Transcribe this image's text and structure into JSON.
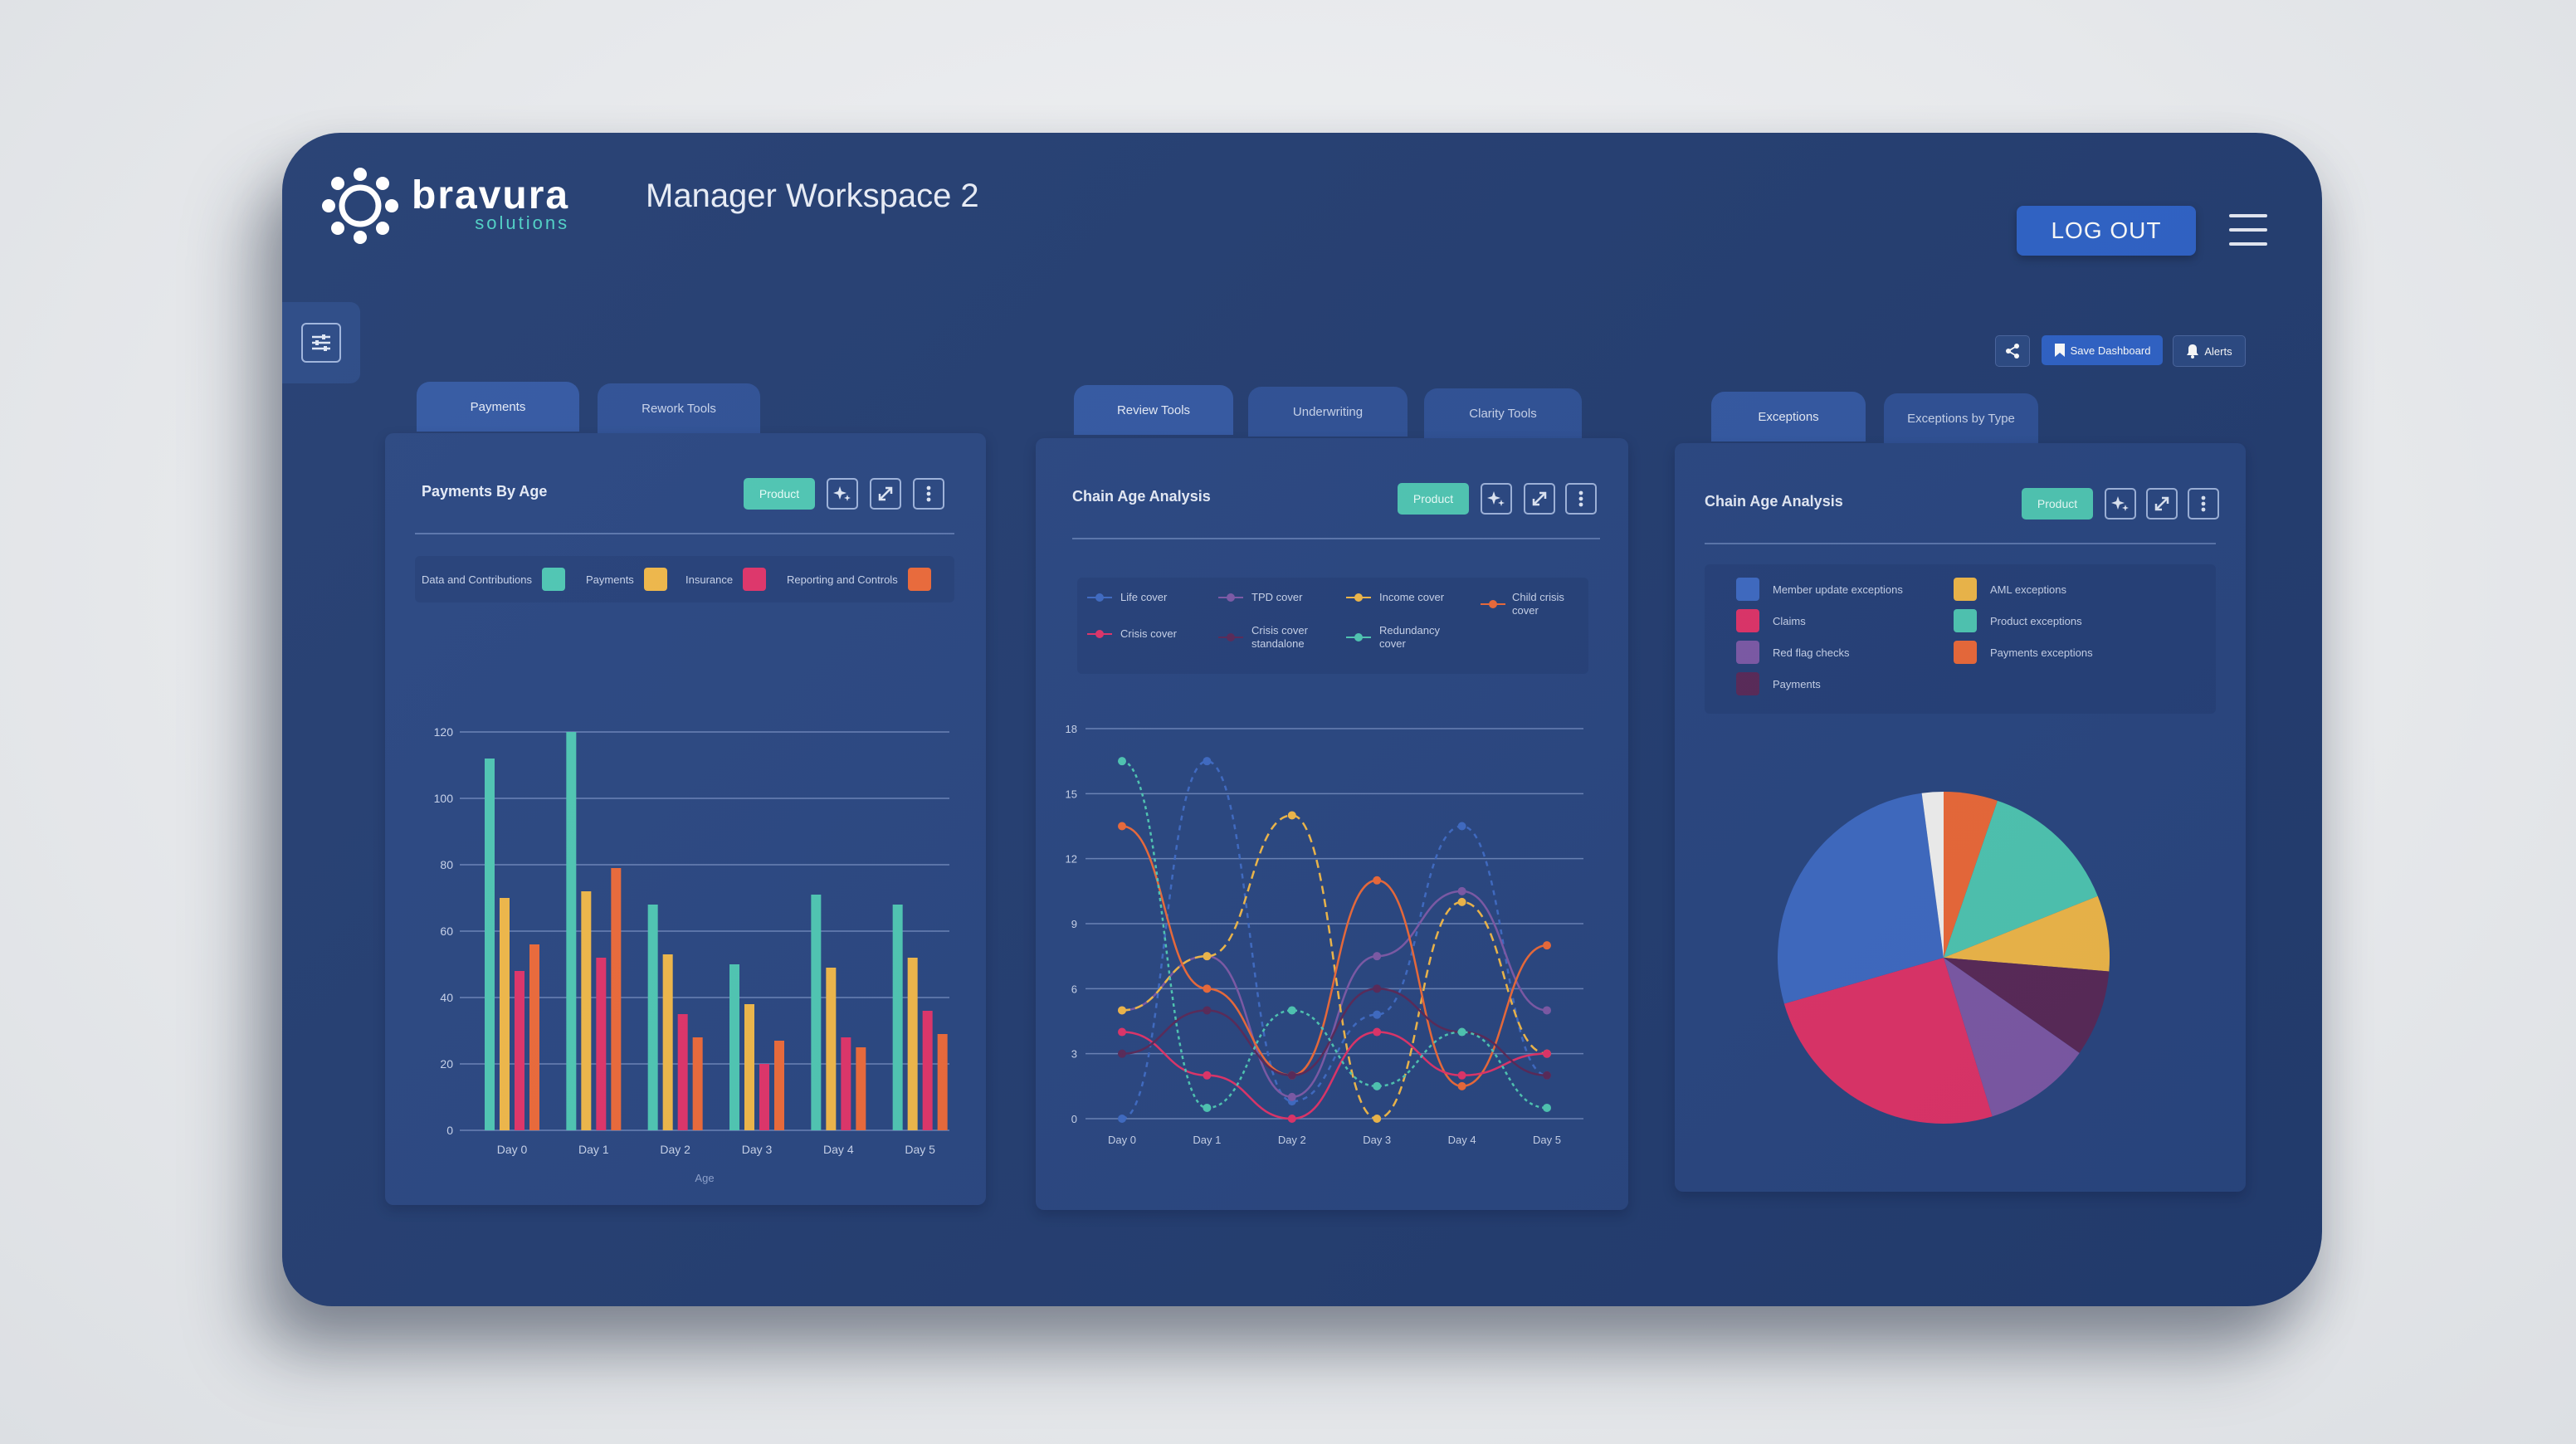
{
  "header": {
    "brand_name": "bravura",
    "brand_sub": "solutions",
    "workspace_title": "Manager Workspace 2",
    "logout_label": "LOG OUT"
  },
  "actions": {
    "save_label": "Save Dashboard",
    "alerts_label": "Alerts"
  },
  "tabs": {
    "group1": [
      "Payments",
      "Rework Tools"
    ],
    "group2": [
      "Review Tools",
      "Underwriting",
      "Clarity Tools"
    ],
    "group3": [
      "Exceptions",
      "Exceptions by Type"
    ]
  },
  "panel1": {
    "title": "Payments By Age",
    "product_label": "Product",
    "legend": [
      "Data and Contributions",
      "Payments",
      "Insurance",
      "Reporting and Controls"
    ]
  },
  "panel2": {
    "title": "Chain Age Analysis",
    "product_label": "Product",
    "legend": [
      "Life cover",
      "TPD cover",
      "Income cover",
      "Child crisis cover",
      "Crisis cover",
      "Crisis cover standalone",
      "Redundancy cover"
    ]
  },
  "panel3": {
    "title": "Chain Age Analysis",
    "product_label": "Product",
    "legend": [
      "Member update exceptions",
      "AML exceptions",
      "Claims",
      "Product exceptions",
      "Red flag checks",
      "Payments exceptions",
      "Payments"
    ]
  },
  "colors": {
    "teal": "#4fc7b4",
    "yellow": "#f0b84a",
    "pink": "#e0346a",
    "orange": "#ec6a3a",
    "blue": "#3f6bc4",
    "purple": "#7d5aa8",
    "dark_purple": "#5a2a5a",
    "accent_button": "#2f63c8",
    "background": "#243e72"
  },
  "chart_data": [
    {
      "type": "bar",
      "title": "Payments By Age",
      "xlabel": "Age",
      "ylabel": "",
      "categories": [
        "Day 0",
        "Day 1",
        "Day 2",
        "Day 3",
        "Day 4",
        "Day 5"
      ],
      "ylim": [
        0,
        120
      ],
      "yticks": [
        0,
        20,
        40,
        60,
        80,
        100,
        120
      ],
      "series": [
        {
          "name": "Data and Contributions",
          "values": [
            112,
            120,
            68,
            50,
            71,
            68
          ]
        },
        {
          "name": "Payments",
          "values": [
            70,
            72,
            53,
            38,
            49,
            52
          ]
        },
        {
          "name": "Insurance",
          "values": [
            48,
            52,
            35,
            20,
            28,
            36
          ]
        },
        {
          "name": "Reporting and Controls",
          "values": [
            56,
            79,
            28,
            27,
            25,
            29
          ]
        }
      ]
    },
    {
      "type": "line",
      "title": "Chain Age Analysis",
      "categories": [
        "Day 0",
        "Day 1",
        "Day 2",
        "Day 3",
        "Day 4",
        "Day 5"
      ],
      "ylim": [
        0,
        18
      ],
      "yticks": [
        0,
        3,
        6,
        9,
        12,
        15,
        18
      ],
      "series": [
        {
          "name": "Life cover",
          "values": [
            0,
            16.5,
            0.8,
            4.8,
            13.5,
            2
          ]
        },
        {
          "name": "TPD cover",
          "values": [
            5,
            7.5,
            1,
            7.5,
            10.5,
            5
          ]
        },
        {
          "name": "Income cover",
          "values": [
            5,
            7.5,
            14,
            0,
            10,
            3
          ]
        },
        {
          "name": "Child crisis cover",
          "values": [
            13.5,
            6,
            2,
            11,
            1.5,
            8
          ]
        },
        {
          "name": "Crisis cover",
          "values": [
            4,
            2,
            0,
            4,
            2,
            3
          ]
        },
        {
          "name": "Crisis cover standalone",
          "values": [
            3,
            5,
            2,
            6,
            4,
            2
          ]
        },
        {
          "name": "Redundancy cover",
          "values": [
            16.5,
            0.5,
            5,
            1.5,
            4,
            0.5
          ]
        }
      ]
    },
    {
      "type": "pie",
      "title": "Chain Age Analysis",
      "series": [
        {
          "name": "Member update exceptions",
          "values": [
            26
          ]
        },
        {
          "name": "Claims",
          "values": [
            24
          ]
        },
        {
          "name": "Red flag checks",
          "values": [
            10
          ]
        },
        {
          "name": "Payments",
          "values": [
            8
          ]
        },
        {
          "name": "AML exceptions",
          "values": [
            7
          ]
        },
        {
          "name": "Product exceptions",
          "values": [
            13
          ]
        },
        {
          "name": "Payments exceptions",
          "values": [
            5
          ]
        }
      ],
      "other_slice": 2
    }
  ]
}
